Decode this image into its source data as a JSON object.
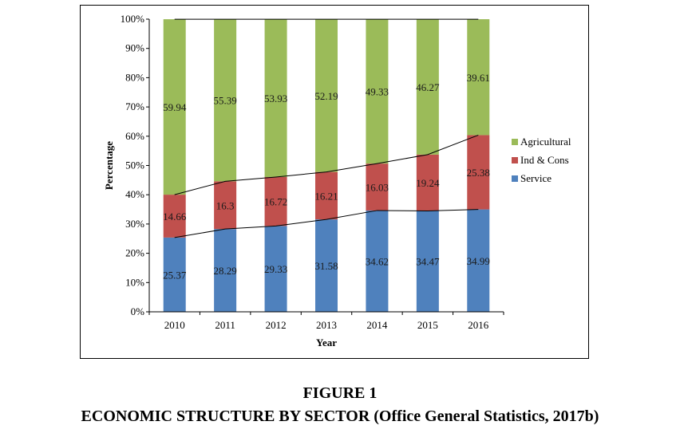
{
  "figure": {
    "label": "FIGURE 1",
    "caption": "ECONOMIC STRUCTURE BY SECTOR (Office General Statistics, 2017b)"
  },
  "chart_data": {
    "type": "bar",
    "stacked": true,
    "title": "",
    "xlabel": "Year",
    "ylabel": "Percentage",
    "ylim": [
      0,
      100
    ],
    "y_ticks": [
      "0%",
      "10%",
      "20%",
      "30%",
      "40%",
      "50%",
      "60%",
      "70%",
      "80%",
      "90%",
      "100%"
    ],
    "grid": false,
    "legend_position": "right",
    "categories": [
      "2010",
      "2011",
      "2012",
      "2013",
      "2014",
      "2015",
      "2016"
    ],
    "series": [
      {
        "name": "Service",
        "color": "#4f81bd",
        "values": [
          25.37,
          28.29,
          29.33,
          31.58,
          34.62,
          34.47,
          34.99
        ],
        "labels": [
          "25.37",
          "28.29",
          "29.33",
          "31.58",
          "34.62",
          "34.47",
          "34.99"
        ]
      },
      {
        "name": "Ind & Cons",
        "color": "#c0504d",
        "values": [
          14.66,
          16.3,
          16.72,
          16.21,
          16.03,
          19.24,
          25.38
        ],
        "labels": [
          "14.66",
          "16.3",
          "16.72",
          "16.21",
          "16.03",
          "19.24",
          "25.38"
        ]
      },
      {
        "name": "Agricultural",
        "color": "#9bbb59",
        "values": [
          59.94,
          55.39,
          53.93,
          52.19,
          49.33,
          46.27,
          39.61
        ],
        "labels": [
          "59.94",
          "55.39",
          "53.93",
          "52.19",
          "49.33",
          "46.27",
          "39.61"
        ]
      }
    ],
    "legend_order": [
      "Agricultural",
      "Ind & Cons",
      "Service"
    ],
    "series_lines": true
  }
}
